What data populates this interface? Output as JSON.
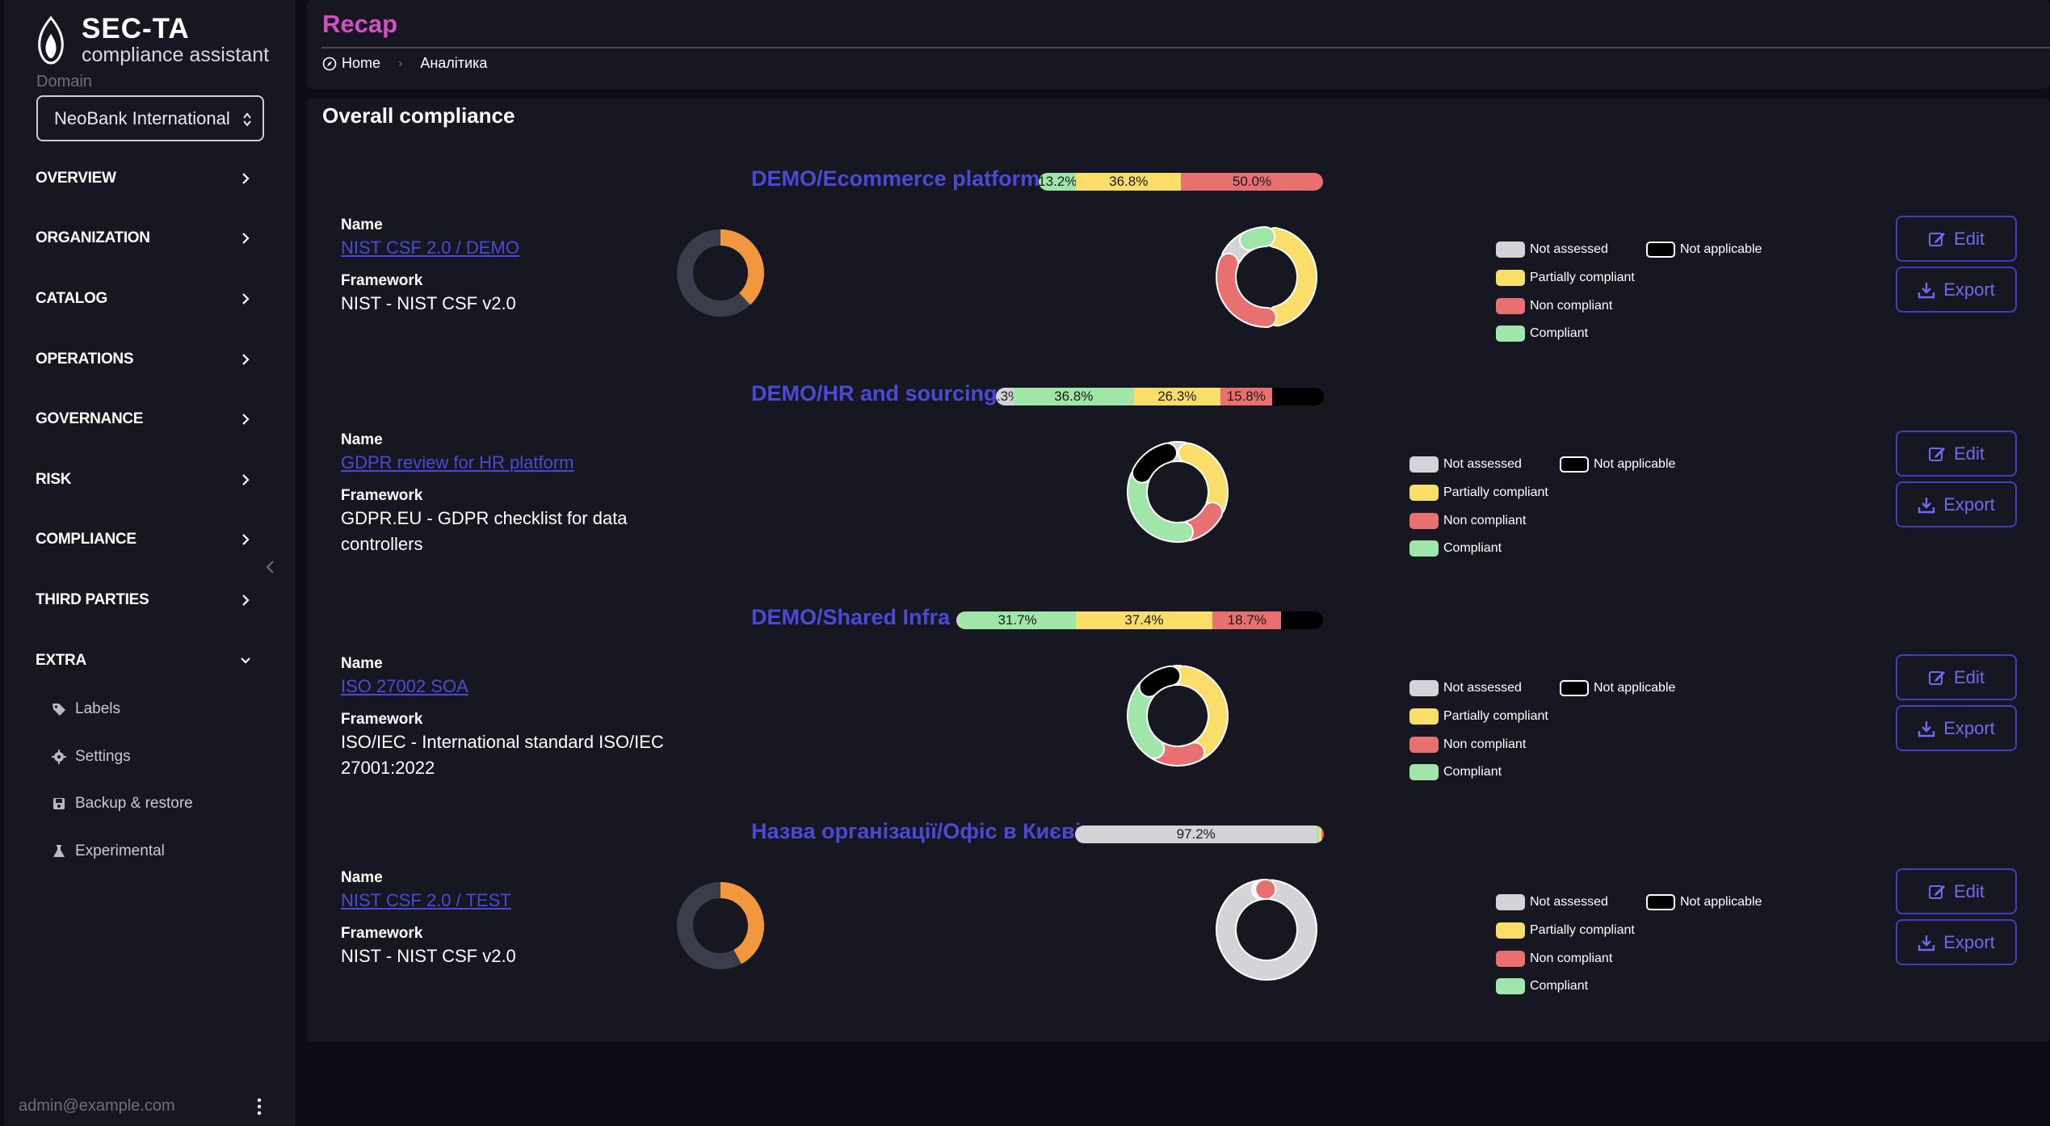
{
  "brand": {
    "title": "SEC-TA",
    "subtitle": "compliance assistant"
  },
  "domain": {
    "label": "Domain",
    "value": "NeoBank International"
  },
  "nav": [
    {
      "label": "OVERVIEW",
      "icon": "chevron-right-icon"
    },
    {
      "label": "ORGANIZATION",
      "icon": "chevron-right-icon"
    },
    {
      "label": "CATALOG",
      "icon": "chevron-right-icon"
    },
    {
      "label": "OPERATIONS",
      "icon": "chevron-right-icon"
    },
    {
      "label": "GOVERNANCE",
      "icon": "chevron-right-icon"
    },
    {
      "label": "RISK",
      "icon": "chevron-right-icon"
    },
    {
      "label": "COMPLIANCE",
      "icon": "chevron-right-icon"
    },
    {
      "label": "THIRD PARTIES",
      "icon": "chevron-right-icon"
    },
    {
      "label": "EXTRA",
      "icon": "chevron-down-icon",
      "expanded": true
    }
  ],
  "extra_items": [
    {
      "label": "Labels",
      "icon": "tag-icon"
    },
    {
      "label": "Settings",
      "icon": "gear-icon"
    },
    {
      "label": "Backup & restore",
      "icon": "save-icon"
    },
    {
      "label": "Experimental",
      "icon": "flask-icon"
    }
  ],
  "user": {
    "email": "admin@example.com"
  },
  "header": {
    "title": "Recap",
    "breadcrumb": [
      "Home",
      "Аналітика"
    ]
  },
  "main": {
    "section_title": "Overall compliance"
  },
  "labels": {
    "name": "Name",
    "framework": "Framework",
    "edit": "Edit",
    "export": "Export"
  },
  "legend": {
    "not_assessed": "Not assessed",
    "not_applicable": "Not applicable",
    "partially_compliant": "Partially compliant",
    "non_compliant": "Non compliant",
    "compliant": "Compliant"
  },
  "colors": {
    "not_assessed": "#d4d4d8",
    "partially_compliant": "#fbdd6a",
    "non_compliant": "#e87070",
    "compliant": "#9fe6a8",
    "not_applicable": "#000000",
    "accent": "#4b4ad8",
    "title": "#d34fc4",
    "gauge": "#f3973e"
  },
  "assessments": [
    {
      "title": "DEMO/Ecommerce platform",
      "name": "NIST CSF 2.0 / DEMO",
      "framework": "NIST - NIST CSF v2.0",
      "score": "1.5",
      "score_fraction": 0.38,
      "bar": [
        {
          "status": "compliant",
          "pct": 13.2,
          "label": "13.2%"
        },
        {
          "status": "partially_compliant",
          "pct": 36.8,
          "label": "36.8%"
        },
        {
          "status": "non_compliant",
          "pct": 50.0,
          "label": "50.0%"
        }
      ]
    },
    {
      "title": "DEMO/HR and sourcing",
      "name": "GDPR review for HR platform",
      "framework": "GDPR.EU - GDPR checklist for data controllers",
      "bar": [
        {
          "status": "not_assessed",
          "pct": 5.3,
          "label": "5.3%"
        },
        {
          "status": "compliant",
          "pct": 36.8,
          "label": "36.8%"
        },
        {
          "status": "partially_compliant",
          "pct": 26.3,
          "label": "26.3%"
        },
        {
          "status": "non_compliant",
          "pct": 15.8,
          "label": "15.8%"
        },
        {
          "status": "not_applicable",
          "pct": 15.8,
          "label": ""
        }
      ]
    },
    {
      "title": "DEMO/Shared Infra",
      "name": "ISO 27002 SOA",
      "framework": "ISO/IEC - International standard ISO/IEC 27001:2022",
      "bar": [
        {
          "status": "not_assessed",
          "pct": 0.8,
          "label": ""
        },
        {
          "status": "compliant",
          "pct": 31.7,
          "label": "31.7%"
        },
        {
          "status": "partially_compliant",
          "pct": 37.4,
          "label": "37.4%"
        },
        {
          "status": "non_compliant",
          "pct": 18.7,
          "label": "18.7%"
        },
        {
          "status": "not_applicable",
          "pct": 11.4,
          "label": ""
        }
      ]
    },
    {
      "title": "Назва організації/Офіс в Києві",
      "name": "NIST CSF 2.0 / TEST",
      "framework": "NIST - NIST CSF v2.0",
      "score": "1.6",
      "score_fraction": 0.42,
      "bar": [
        {
          "status": "not_assessed",
          "pct": 97.2,
          "label": "97.2%"
        },
        {
          "status": "compliant",
          "pct": 0.9,
          "label": ""
        },
        {
          "status": "partially_compliant",
          "pct": 0.9,
          "label": ""
        },
        {
          "status": "non_compliant",
          "pct": 1.0,
          "label": ""
        }
      ]
    }
  ]
}
